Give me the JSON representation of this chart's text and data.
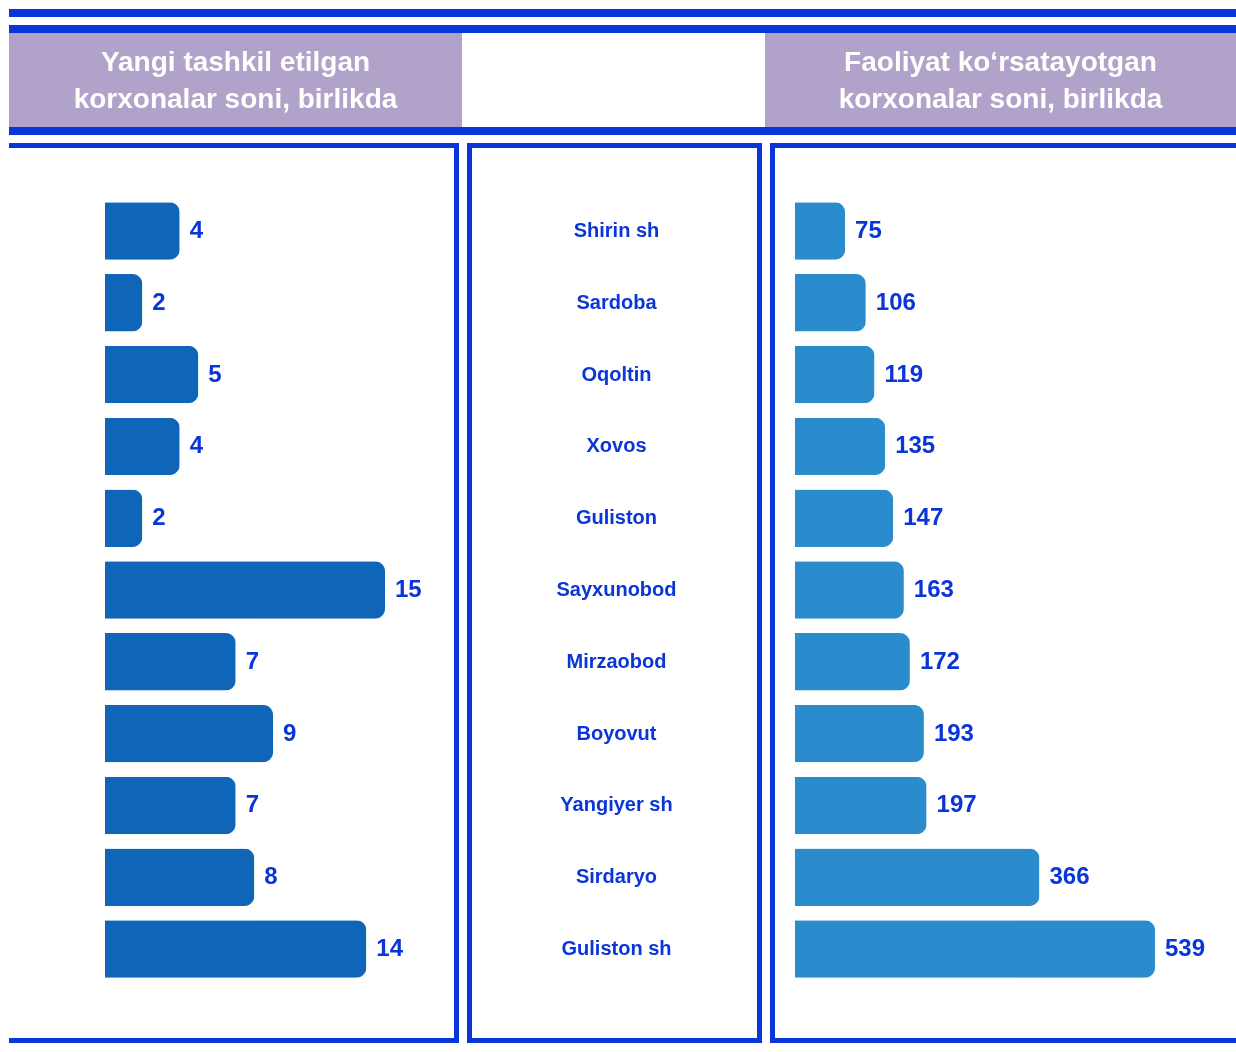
{
  "chart_data": [
    {
      "type": "bar",
      "orientation": "horizontal",
      "title": "Yangi tashkil etilgan korxonalar soni, birlikda",
      "categories": [
        "Shirin sh",
        "Sardoba",
        "Oqoltin",
        "Xovos",
        "Guliston",
        "Sayxunobod",
        "Mirzaobod",
        "Boyovut",
        "Yangiyer sh",
        "Sirdaryo",
        "Guliston sh"
      ],
      "values": [
        4,
        2,
        5,
        4,
        2,
        15,
        7,
        9,
        7,
        8,
        14
      ],
      "color": "#0f66b8",
      "data_labels": true,
      "tick_labels": "y"
    },
    {
      "type": "bar",
      "orientation": "horizontal",
      "title": "Faoliyat ko‘rsatayotgan korxonalar soni, birlikda",
      "categories": [
        null,
        null,
        null,
        null,
        null,
        null,
        null,
        null,
        null,
        null,
        null
      ],
      "values": [
        75,
        106,
        119,
        135,
        147,
        163,
        172,
        193,
        197,
        366,
        539
      ],
      "color": "#2a8ccc",
      "data_labels": true,
      "tick_labels": false
    }
  ]
}
